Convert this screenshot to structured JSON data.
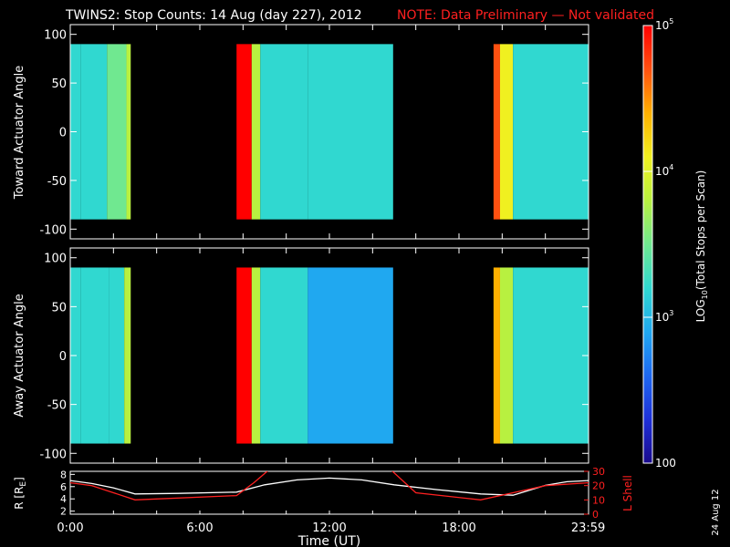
{
  "title": {
    "main": "TWINS2: Stop Counts: 14 Aug (day 227), 2012",
    "note": "NOTE: Data Preliminary — Not validated"
  },
  "date_stamp": "24 Aug 12",
  "colors": {
    "background": "#000000",
    "axes": "#ffffff",
    "note": "#ff2020",
    "r_line": "#ffffff",
    "lshell_line": "#ff2020",
    "colormap": [
      "#1a0a8c",
      "#1e30d8",
      "#1e68f0",
      "#20a8f0",
      "#30d8d0",
      "#70e890",
      "#b8f040",
      "#f0f020",
      "#ffb000",
      "#ff5010",
      "#ff0000"
    ]
  },
  "chart_data": [
    {
      "type": "heatmap",
      "panel": "toward",
      "ylabel": "Toward Actuator Angle",
      "xlim_hours": [
        0,
        24
      ],
      "ylim": [
        -110,
        110
      ],
      "yticks": [
        100,
        50,
        0,
        -50,
        -100
      ],
      "data_y_range": [
        -90,
        90
      ],
      "scale": "log",
      "data_intervals_hours": [
        [
          0.0,
          2.8
        ],
        [
          7.7,
          14.95
        ],
        [
          19.6,
          24.0
        ]
      ],
      "columns": [
        {
          "start": 0.0,
          "end": 0.5,
          "level": 0.42
        },
        {
          "start": 0.5,
          "end": 1.7,
          "level": 0.4
        },
        {
          "start": 1.7,
          "end": 2.6,
          "level": 0.45
        },
        {
          "start": 2.6,
          "end": 2.8,
          "level": 0.62
        },
        {
          "start": 7.7,
          "end": 8.4,
          "level": 0.95
        },
        {
          "start": 8.4,
          "end": 8.8,
          "level": 0.6
        },
        {
          "start": 8.8,
          "end": 11.0,
          "level": 0.4
        },
        {
          "start": 11.0,
          "end": 14.95,
          "level": 0.36
        },
        {
          "start": 19.6,
          "end": 19.9,
          "level": 0.85
        },
        {
          "start": 19.9,
          "end": 20.5,
          "level": 0.68
        },
        {
          "start": 20.5,
          "end": 22.5,
          "level": 0.42
        },
        {
          "start": 22.5,
          "end": 24.0,
          "level": 0.38
        }
      ]
    },
    {
      "type": "heatmap",
      "panel": "away",
      "ylabel": "Away Actuator Angle",
      "xlim_hours": [
        0,
        24
      ],
      "ylim": [
        -110,
        110
      ],
      "yticks": [
        100,
        50,
        0,
        -50,
        -100
      ],
      "data_y_range": [
        -90,
        90
      ],
      "scale": "log",
      "data_intervals_hours": [
        [
          0.0,
          2.8
        ],
        [
          7.7,
          14.95
        ],
        [
          19.6,
          24.0
        ]
      ],
      "columns": [
        {
          "start": 0.0,
          "end": 0.5,
          "level": 0.42
        },
        {
          "start": 0.5,
          "end": 1.8,
          "level": 0.36
        },
        {
          "start": 1.8,
          "end": 2.5,
          "level": 0.42
        },
        {
          "start": 2.5,
          "end": 2.8,
          "level": 0.6
        },
        {
          "start": 7.7,
          "end": 8.4,
          "level": 0.95
        },
        {
          "start": 8.4,
          "end": 8.8,
          "level": 0.55
        },
        {
          "start": 8.8,
          "end": 11.0,
          "level": 0.36
        },
        {
          "start": 11.0,
          "end": 14.95,
          "level": 0.3
        },
        {
          "start": 19.6,
          "end": 19.9,
          "level": 0.82
        },
        {
          "start": 19.9,
          "end": 20.5,
          "level": 0.6
        },
        {
          "start": 20.5,
          "end": 22.5,
          "level": 0.36
        },
        {
          "start": 22.5,
          "end": 24.0,
          "level": 0.36
        }
      ]
    },
    {
      "type": "line",
      "panel": "orbit",
      "ylabel_left": "R [R",
      "ylabel_left_sub": "E",
      "ylabel_left_end": "]",
      "ylabel_right": "L Shell",
      "xlabel": "Time (UT)",
      "xticks_hours": [
        0,
        6,
        12,
        18,
        23.983
      ],
      "xtick_labels": [
        "0:00",
        "6:00",
        "12:00",
        "18:00",
        "23:59"
      ],
      "left_ylim": [
        1.5,
        8.5
      ],
      "left_yticks": [
        2,
        4,
        6,
        8
      ],
      "right_ylim": [
        0,
        30
      ],
      "right_yticks": [
        0,
        10,
        20,
        30
      ],
      "series": [
        {
          "axis": "left",
          "x": [
            0,
            1,
            2,
            3,
            5,
            7.7,
            9,
            10.5,
            12,
            13.5,
            15,
            17,
            19,
            20.5,
            22,
            23,
            24
          ],
          "values": [
            7.0,
            6.5,
            5.8,
            4.8,
            4.9,
            5.1,
            6.3,
            7.1,
            7.4,
            7.1,
            6.3,
            5.5,
            4.8,
            4.6,
            6.2,
            6.8,
            7.0
          ]
        },
        {
          "axis": "right",
          "x": [
            0,
            1,
            3,
            7.7,
            8.5,
            9.2,
            9.25,
            14.8,
            14.85,
            16,
            19,
            20.5,
            22,
            24
          ],
          "values": [
            22,
            20,
            10,
            13,
            22,
            31,
            null,
            null,
            31,
            15,
            10,
            15,
            20,
            22
          ]
        }
      ]
    }
  ],
  "colorbar": {
    "label_prefix": "LOG",
    "label_sub": "10",
    "label_suffix": "(Total Stops per Scan)",
    "tick_labels": [
      {
        "base": "10",
        "exp": "5",
        "value": 100000
      },
      {
        "base": "10",
        "exp": "4",
        "value": 10000
      },
      {
        "base": "10",
        "exp": "3",
        "value": 1000
      },
      {
        "base": "100",
        "exp": "",
        "value": 100
      }
    ]
  }
}
